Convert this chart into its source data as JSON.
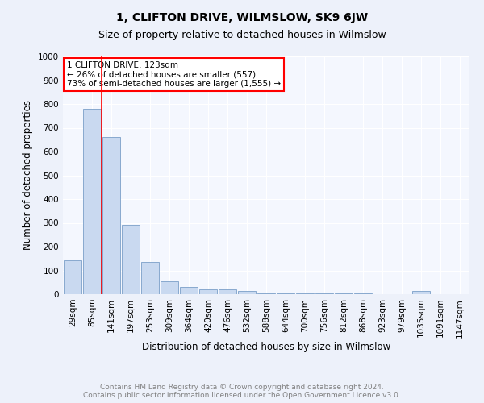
{
  "title": "1, CLIFTON DRIVE, WILMSLOW, SK9 6JW",
  "subtitle": "Size of property relative to detached houses in Wilmslow",
  "xlabel": "Distribution of detached houses by size in Wilmslow",
  "ylabel": "Number of detached properties",
  "footer_line1": "Contains HM Land Registry data © Crown copyright and database right 2024.",
  "footer_line2": "Contains public sector information licensed under the Open Government Licence v3.0.",
  "bin_labels": [
    "29sqm",
    "85sqm",
    "141sqm",
    "197sqm",
    "253sqm",
    "309sqm",
    "364sqm",
    "420sqm",
    "476sqm",
    "532sqm",
    "588sqm",
    "644sqm",
    "700sqm",
    "756sqm",
    "812sqm",
    "868sqm",
    "923sqm",
    "979sqm",
    "1035sqm",
    "1091sqm",
    "1147sqm"
  ],
  "bar_values": [
    142,
    778,
    660,
    293,
    135,
    53,
    30,
    22,
    22,
    14,
    5,
    5,
    5,
    5,
    5,
    5,
    0,
    0,
    13,
    0,
    0
  ],
  "bar_color": "#c9d9f0",
  "bar_edge_color": "#7a9fc8",
  "vline_x": 1.5,
  "vline_color": "red",
  "annotation_text": "1 CLIFTON DRIVE: 123sqm\n← 26% of detached houses are smaller (557)\n73% of semi-detached houses are larger (1,555) →",
  "annotation_box_color": "white",
  "annotation_box_edge": "red",
  "ylim": [
    0,
    1000
  ],
  "yticks": [
    0,
    100,
    200,
    300,
    400,
    500,
    600,
    700,
    800,
    900,
    1000
  ],
  "bg_color": "#edf1fa",
  "plot_bg_color": "#f4f7fe",
  "grid_color": "white",
  "title_fontsize": 10,
  "subtitle_fontsize": 9,
  "axis_label_fontsize": 8.5,
  "tick_fontsize": 7.5,
  "annotation_fontsize": 7.5,
  "footer_fontsize": 6.5
}
